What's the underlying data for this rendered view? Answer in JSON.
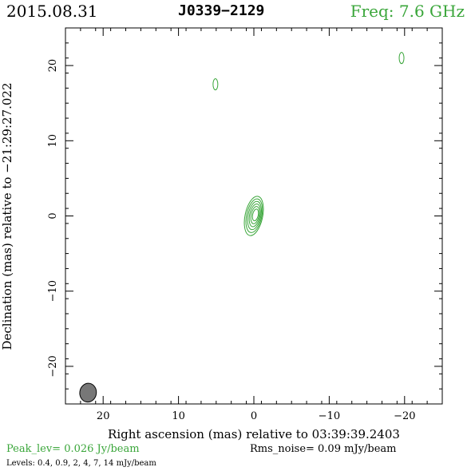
{
  "header": {
    "date": "2015.08.31",
    "source": "J0339−2129",
    "freq": "Freq: 7.6 GHz"
  },
  "footer": {
    "peak": "Peak_lev=  0.026 Jy/beam",
    "rms": "Rms_noise= 0.09 mJy/beam",
    "levels": "Levels: 0.4, 0.9,   2,   4,   7,  14 mJy/beam"
  },
  "colors": {
    "contour": "#3aa63a",
    "beam": "#777777"
  },
  "chart_data": {
    "type": "contour",
    "xlabel": "Right ascension (mas) relative to 03:39:39.2403",
    "ylabel": "Declination (mas) relative to −21:29:27.022",
    "xlim": [
      25,
      -25
    ],
    "ylim": [
      -25,
      25
    ],
    "x_ticks": [
      20,
      10,
      0,
      -10,
      -20
    ],
    "x_tick_labels": [
      "20",
      "10",
      "0",
      "−10",
      "−20"
    ],
    "y_ticks": [
      20,
      10,
      0,
      -10,
      -20
    ],
    "y_tick_labels": [
      "20",
      "10",
      "0",
      "−10",
      "−20"
    ],
    "contour_levels_mJy": [
      0.4,
      0.9,
      2,
      4,
      7,
      14
    ],
    "components": [
      {
        "x": 0,
        "y": 0,
        "levels": 6
      },
      {
        "x": 5.1,
        "y": 17.5,
        "levels": 1
      },
      {
        "x": -19.6,
        "y": 21,
        "levels": 1
      }
    ],
    "beam": {
      "x": 22,
      "y": -23.5,
      "major_mas": 2.5,
      "minor_mas": 1.1
    }
  }
}
